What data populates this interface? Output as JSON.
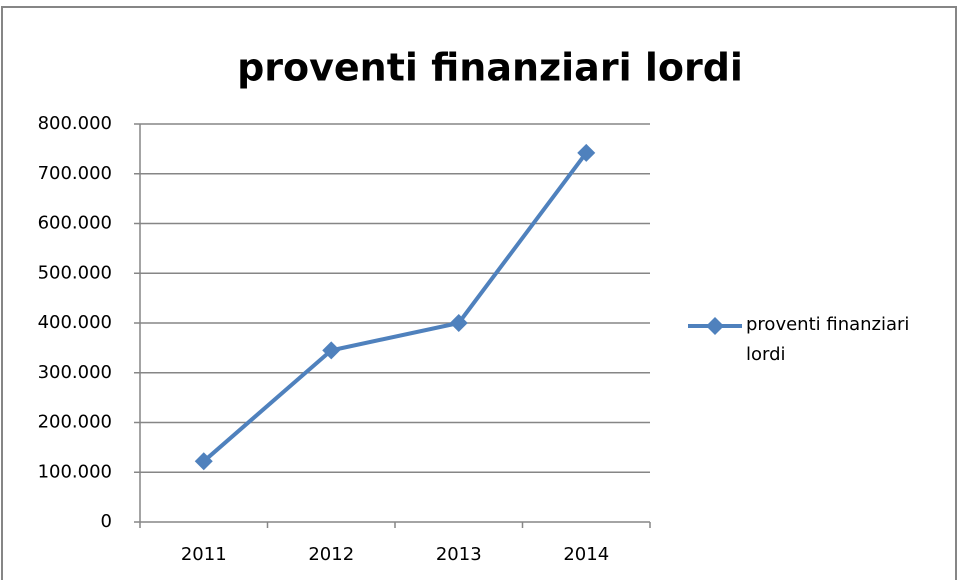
{
  "chart_data": {
    "type": "line",
    "title": "proventi finanziari lordi",
    "categories": [
      "2011",
      "2012",
      "2013",
      "2014"
    ],
    "series": [
      {
        "name": "proventi finanziari lordi",
        "color": "#4f81bd",
        "values": [
          122000,
          345000,
          400000,
          742000
        ]
      }
    ],
    "ylim": [
      0,
      800000
    ],
    "yticks": [
      0,
      {
        "value": 100000,
        "label": "100.000"
      },
      {
        "value": 200000,
        "label": "200.000"
      },
      {
        "value": 300000,
        "label": "300.000"
      },
      {
        "value": 400000,
        "label": "400.000"
      },
      {
        "value": 500000,
        "label": "500.000"
      },
      {
        "value": 600000,
        "label": "600.000"
      },
      {
        "value": 700000,
        "label": "700.000"
      },
      {
        "value": 800000,
        "label": "800.000"
      }
    ],
    "grid": true,
    "legend": "right"
  }
}
